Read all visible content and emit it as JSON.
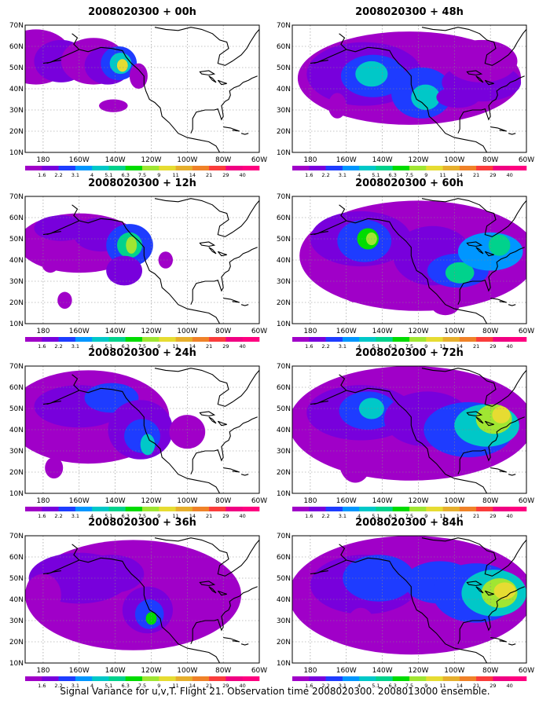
{
  "panels": [
    {
      "title": "2008020300 + 00h",
      "lead": "00h"
    },
    {
      "title": "2008020300 + 48h",
      "lead": "48h"
    },
    {
      "title": "2008020300 + 12h",
      "lead": "12h"
    },
    {
      "title": "2008020300 + 60h",
      "lead": "60h"
    },
    {
      "title": "2008020300 + 24h",
      "lead": "24h"
    },
    {
      "title": "2008020300 + 72h",
      "lead": "72h"
    },
    {
      "title": "2008020300 + 36h",
      "lead": "36h"
    },
    {
      "title": "2008020300 + 84h",
      "lead": "84h"
    }
  ],
  "lat_labels": [
    "70N",
    "60N",
    "50N",
    "40N",
    "30N",
    "20N",
    "10N"
  ],
  "lon_labels": [
    "180",
    "160W",
    "140W",
    "120W",
    "100W",
    "80W",
    "60W"
  ],
  "colorbar": {
    "labels": [
      "1.6",
      "2.2",
      "3.1",
      "4",
      "5.1",
      "6.3",
      "7.5",
      "9",
      "11",
      "14",
      "21",
      "29",
      "40"
    ],
    "colors": [
      "#a000c8",
      "#7800dc",
      "#1e3cff",
      "#0096ff",
      "#00c8c8",
      "#00d28c",
      "#00dc00",
      "#a0e632",
      "#e6dc32",
      "#e6af2d",
      "#f08228",
      "#fa3c3c",
      "#f00082",
      "#ff0080"
    ]
  },
  "caption": "Signal Variance for u,v,T. Flight 21. Observation time 2008020300. 2008013000 ensemble."
}
